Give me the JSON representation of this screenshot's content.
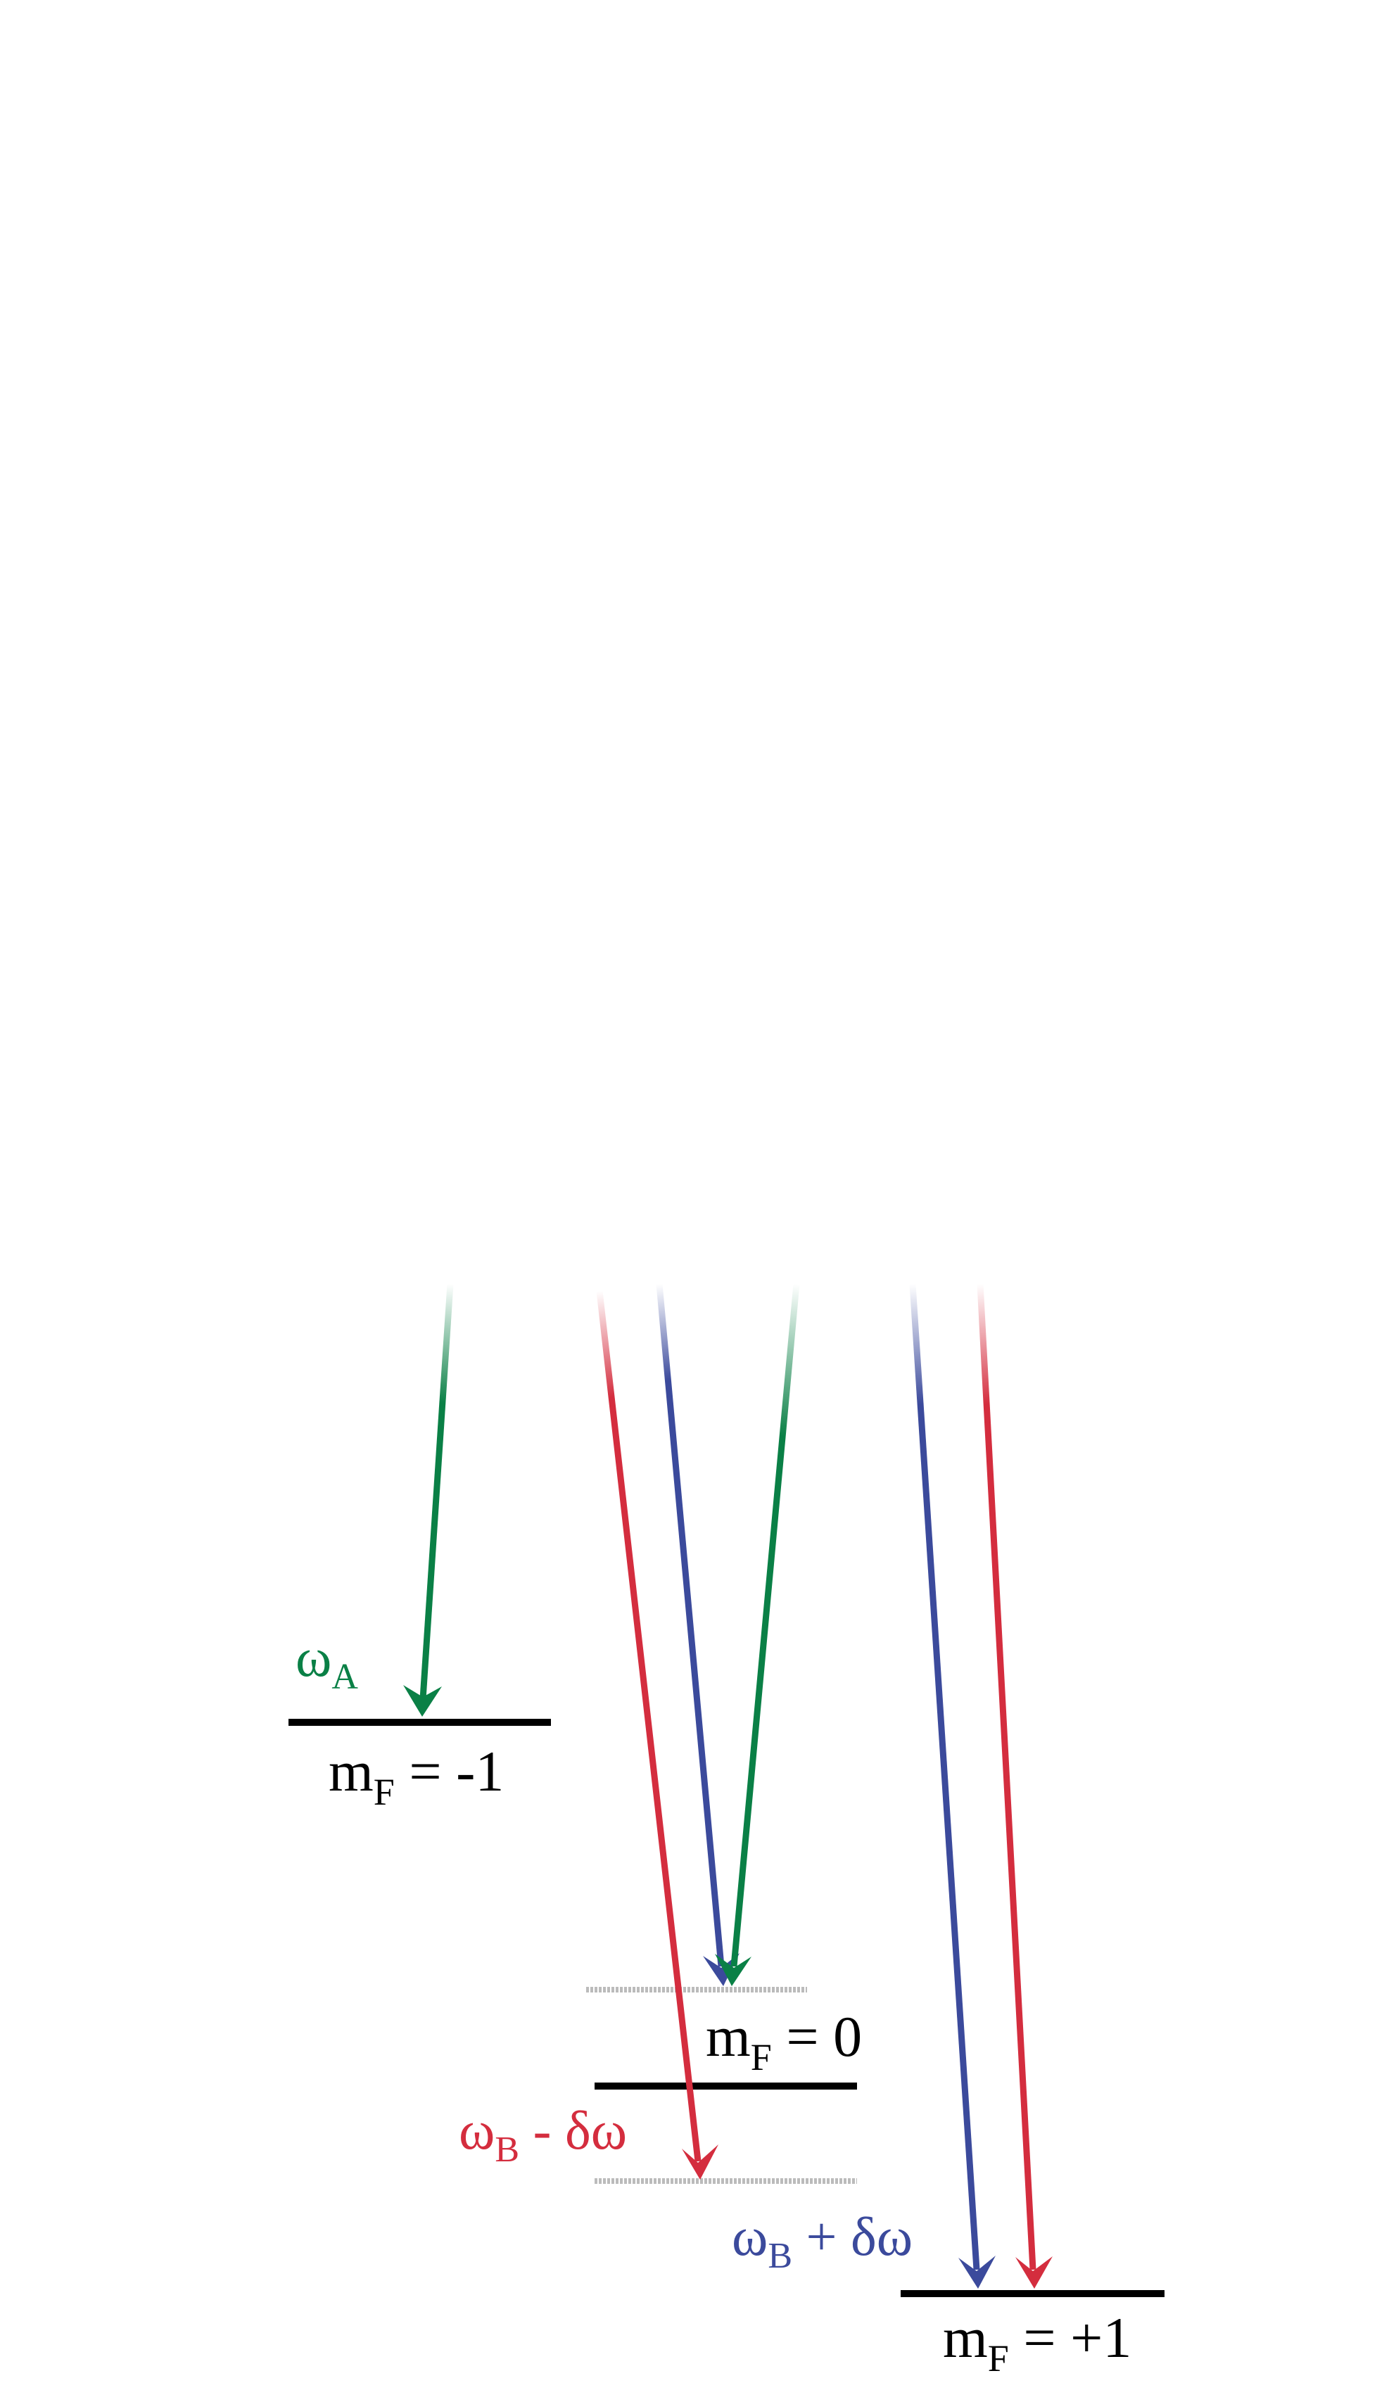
{
  "colors": {
    "green": "#0a8046",
    "red": "#d42d3e",
    "blue": "#3b4a9c",
    "level": "#000000",
    "virtual_level": "#bbbbbb"
  },
  "levels": [
    {
      "id": "mf-minus1",
      "base": "m",
      "sub": "F",
      "rest": " = -1"
    },
    {
      "id": "mf-zero",
      "base": "m",
      "sub": "F",
      "rest": " = 0"
    },
    {
      "id": "mf-plus1",
      "base": "m",
      "sub": "F",
      "rest": " = +1"
    }
  ],
  "beam_labels": {
    "omega_a": {
      "base": "ω",
      "sub": "A",
      "rest": ""
    },
    "omega_b_minus": {
      "base": "ω",
      "sub": "B",
      "rest": " - δω"
    },
    "omega_b_plus": {
      "base": "ω",
      "sub": "B",
      "rest": " + δω"
    }
  }
}
